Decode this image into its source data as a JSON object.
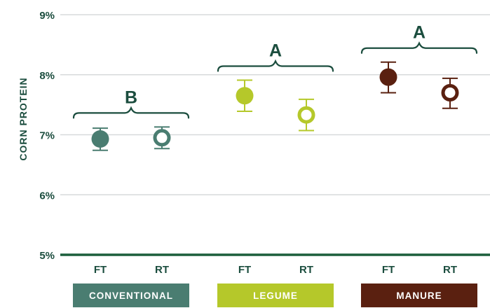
{
  "chart_data": {
    "type": "scatter",
    "ylabel": "CORN PROTEIN",
    "ylim": [
      5,
      9
    ],
    "yticks": [
      5,
      6,
      7,
      8,
      9
    ],
    "ytick_labels": [
      "5%",
      "6%",
      "7%",
      "8%",
      "9%"
    ],
    "grid": true,
    "groups": [
      {
        "name": "CONVENTIONAL",
        "color": "#4a7d71",
        "letter": "B",
        "points": [
          {
            "label": "FT",
            "value": 6.93,
            "low": 6.74,
            "high": 7.11,
            "filled": true
          },
          {
            "label": "RT",
            "value": 6.95,
            "low": 6.77,
            "high": 7.13,
            "filled": false
          }
        ]
      },
      {
        "name": "LEGUME",
        "color": "#b5c82a",
        "letter": "A",
        "points": [
          {
            "label": "FT",
            "value": 7.65,
            "low": 7.39,
            "high": 7.91,
            "filled": true
          },
          {
            "label": "RT",
            "value": 7.33,
            "low": 7.07,
            "high": 7.59,
            "filled": false
          }
        ]
      },
      {
        "name": "MANURE",
        "color": "#5a2010",
        "letter": "A",
        "points": [
          {
            "label": "FT",
            "value": 7.96,
            "low": 7.7,
            "high": 8.21,
            "filled": true
          },
          {
            "label": "RT",
            "value": 7.7,
            "low": 7.44,
            "high": 7.94,
            "filled": false
          }
        ]
      }
    ]
  },
  "colors": {
    "axis": "#1b5e3b",
    "grid": "#d7dadb",
    "ink": "#1b4d3e"
  }
}
